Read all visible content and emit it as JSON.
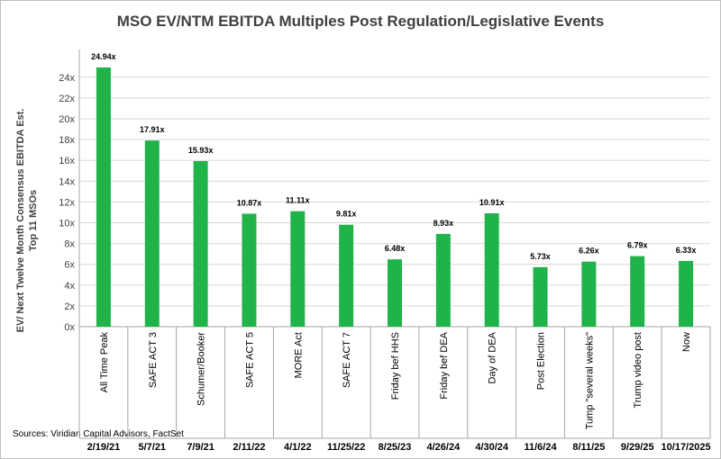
{
  "chart_data": {
    "type": "bar",
    "title": "MSO EV/NTM EBITDA Multiples Post Regulation/Legislative Events",
    "ylabel_line1": "EV/ Next Twelve Month Consensus EBITDA Est.",
    "ylabel_line2": "Top 11 MSOs",
    "source": "Sources: Viridian Capital Advisors, FactSet",
    "ylim": [
      0,
      26
    ],
    "yticks": [
      0,
      2,
      4,
      6,
      8,
      10,
      12,
      14,
      16,
      18,
      20,
      22,
      24
    ],
    "ytick_labels": [
      "0x",
      "2x",
      "4x",
      "6x",
      "8x",
      "10x",
      "12x",
      "14x",
      "16x",
      "18x",
      "20x",
      "22x",
      "24x"
    ],
    "grid": true,
    "legend": "none",
    "bar_color": "#1fb34a",
    "categories": [
      "All Time Peak",
      "SAFE ACT 3",
      "Schumer/Booker",
      "SAFE ACT 5",
      "MORE Act",
      "SAFE ACT 7",
      "Friday bef HHS",
      "Friday bef DEA",
      "Day of DEA",
      "Post Election",
      "Tump \"several weeks\"",
      "Trump video post",
      "Now"
    ],
    "dates": [
      "2/19/21",
      "5/7/21",
      "7/9/21",
      "2/11/22",
      "4/1/22",
      "11/25/22",
      "8/25/23",
      "4/26/24",
      "4/30/24",
      "11/6/24",
      "8/11/25",
      "9/29/25",
      "10/17/2025"
    ],
    "values": [
      24.94,
      17.91,
      15.93,
      10.87,
      11.11,
      9.81,
      6.48,
      8.93,
      10.91,
      5.73,
      6.26,
      6.79,
      6.33
    ],
    "data_labels": [
      "24.94x",
      "17.91x",
      "15.93x",
      "10.87x",
      "11.11x",
      "9.81x",
      "6.48x",
      "8.93x",
      "10.91x",
      "5.73x",
      "6.26x",
      "6.79x",
      "6.33x"
    ]
  }
}
